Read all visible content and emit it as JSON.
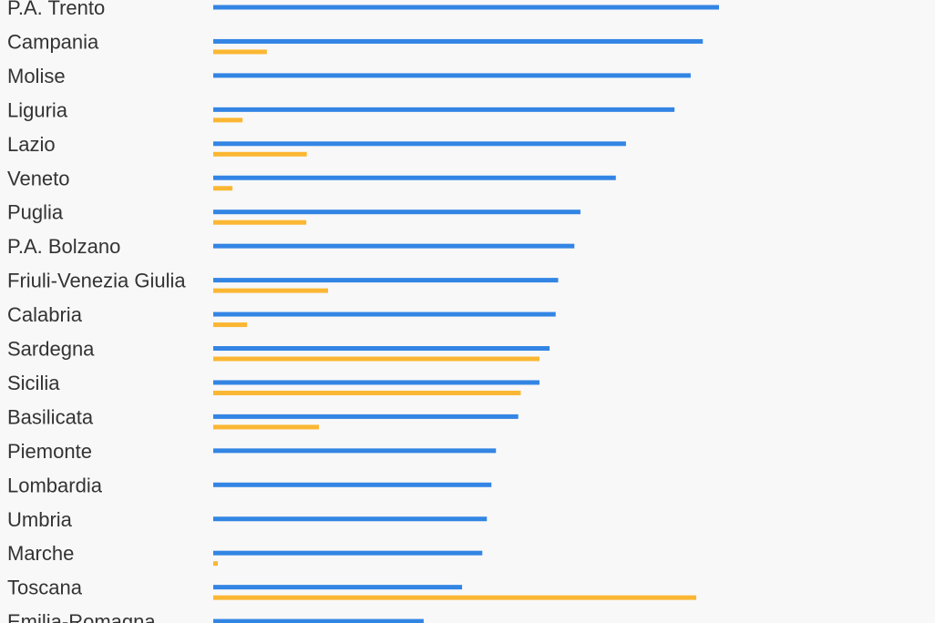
{
  "chart_data": {
    "type": "bar",
    "orientation": "horizontal",
    "colors": {
      "primary": "#3385e4",
      "secondary": "#fbb733",
      "label": "#333333",
      "background": "#f8f8f8"
    },
    "xlim": [
      0,
      100
    ],
    "categories": [
      "P.A. Trento",
      "Campania",
      "Molise",
      "Liguria",
      "Lazio",
      "Veneto",
      "Puglia",
      "P.A. Bolzano",
      "Friuli-Venezia Giulia",
      "Calabria",
      "Sardegna",
      "Sicilia",
      "Basilicata",
      "Piemonte",
      "Lombardia",
      "Umbria",
      "Marche",
      "Toscana",
      "Emilia-Romagna"
    ],
    "series": [
      {
        "color": "#3385e4",
        "values": [
          100,
          96.8,
          94.4,
          91.2,
          81.6,
          79.6,
          72.6,
          71.4,
          68.2,
          67.7,
          66.5,
          64.5,
          60.3,
          55.9,
          55.0,
          54.1,
          53.2,
          49.2,
          41.6
        ]
      },
      {
        "color": "#fbb733",
        "values": [
          0,
          10.6,
          0,
          5.8,
          18.5,
          3.8,
          18.4,
          0,
          22.7,
          6.7,
          64.5,
          60.8,
          20.9,
          0,
          0,
          0,
          0.9,
          95.5,
          0
        ]
      }
    ]
  }
}
